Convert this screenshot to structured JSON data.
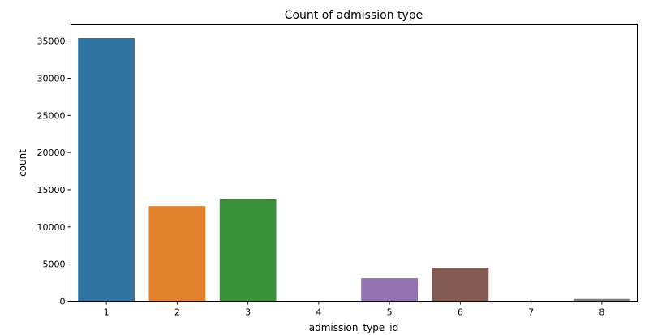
{
  "chart_data": {
    "type": "bar",
    "title": "Count of admission type",
    "xlabel": "admission_type_id",
    "ylabel": "count",
    "categories": [
      "1",
      "2",
      "3",
      "4",
      "5",
      "6",
      "7",
      "8"
    ],
    "values": [
      35400,
      12800,
      13800,
      10,
      3100,
      4500,
      20,
      300
    ],
    "colors": [
      "#3274a1",
      "#e1812c",
      "#3a923a",
      "#c03d3e",
      "#9372b2",
      "#845b53",
      "#d684bd",
      "#7f7f7f"
    ],
    "ylim": [
      0,
      37200
    ],
    "yticks": [
      0,
      5000,
      10000,
      15000,
      20000,
      25000,
      30000,
      35000
    ],
    "ytick_labels": [
      "0",
      "5000",
      "10000",
      "15000",
      "20000",
      "25000",
      "30000",
      "35000"
    ],
    "grid": false,
    "legend": "none"
  }
}
